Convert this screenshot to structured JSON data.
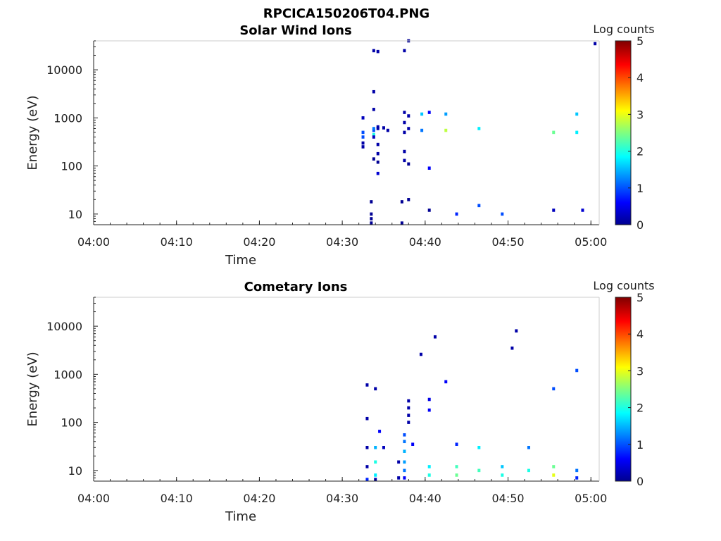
{
  "figure_title": "RPCICA150206T04.PNG",
  "chart_data": [
    {
      "type": "heatmap",
      "title": "Solar Wind Ions",
      "xlabel": "Time",
      "ylabel": "Energy (eV)",
      "x_ticks": [
        "04:00",
        "04:10",
        "04:20",
        "04:30",
        "04:40",
        "04:50",
        "05:00"
      ],
      "x_range_min": [
        0,
        61
      ],
      "y_scale": "log",
      "y_ticks": [
        10,
        100,
        1000,
        10000
      ],
      "y_tick_labels": [
        "10",
        "100",
        "1000",
        "10000"
      ],
      "y_range": [
        6,
        40000
      ],
      "colorbar": {
        "label": "Log counts",
        "ticks": [
          "0",
          "1",
          "2",
          "3",
          "4",
          "5"
        ],
        "range": [
          0,
          5
        ],
        "colormap": "jet"
      },
      "cells": [
        [
          32.5,
          1000,
          0.3
        ],
        [
          32.5,
          500,
          1.0
        ],
        [
          32.5,
          400,
          1.0
        ],
        [
          32.5,
          300,
          0.2
        ],
        [
          32.5,
          250,
          0.2
        ],
        [
          33.5,
          18,
          0.1
        ],
        [
          33.5,
          10,
          0.1
        ],
        [
          33.5,
          8,
          0.1
        ],
        [
          33.5,
          6.5,
          0.1
        ],
        [
          33.8,
          550,
          1.0
        ],
        [
          33.8,
          450,
          2.0
        ],
        [
          33.8,
          600,
          1.2
        ],
        [
          33.8,
          400,
          0.3
        ],
        [
          33.8,
          1500,
          0.2
        ],
        [
          33.8,
          3500,
          0.2
        ],
        [
          33.8,
          25000,
          0.2
        ],
        [
          33.8,
          140,
          0.1
        ],
        [
          34.3,
          650,
          0.2
        ],
        [
          34.3,
          600,
          0.2
        ],
        [
          34.3,
          280,
          0.2
        ],
        [
          34.3,
          180,
          0.2
        ],
        [
          34.3,
          120,
          0.1
        ],
        [
          34.3,
          70,
          0.4
        ],
        [
          34.3,
          24000,
          0.2
        ],
        [
          35.0,
          620,
          0.2
        ],
        [
          35.5,
          550,
          0.2
        ],
        [
          37.2,
          6.5,
          0.1
        ],
        [
          37.2,
          18,
          0.1
        ],
        [
          37.5,
          25000,
          0.2
        ],
        [
          37.5,
          1300,
          0.2
        ],
        [
          37.5,
          800,
          0.2
        ],
        [
          37.5,
          500,
          0.2
        ],
        [
          37.5,
          200,
          0.2
        ],
        [
          37.5,
          130,
          0.2
        ],
        [
          38.0,
          40000,
          0.1
        ],
        [
          38.0,
          1100,
          0.2
        ],
        [
          38.0,
          600,
          0.2
        ],
        [
          38.0,
          110,
          0.1
        ],
        [
          38.0,
          20,
          0.1
        ],
        [
          39.6,
          1200,
          1.6
        ],
        [
          39.6,
          550,
          1.2
        ],
        [
          40.5,
          1300,
          0.6
        ],
        [
          40.5,
          90,
          0.6
        ],
        [
          40.5,
          12,
          0.1
        ],
        [
          42.5,
          1200,
          1.4
        ],
        [
          42.5,
          550,
          2.8
        ],
        [
          43.8,
          10,
          0.8
        ],
        [
          46.5,
          600,
          1.8
        ],
        [
          46.5,
          15,
          1.0
        ],
        [
          49.3,
          10,
          1.0
        ],
        [
          55.5,
          500,
          2.4
        ],
        [
          55.5,
          12,
          0.3
        ],
        [
          58.3,
          1200,
          1.6
        ],
        [
          58.3,
          500,
          1.8
        ],
        [
          59.0,
          12,
          0.4
        ],
        [
          60.5,
          35000,
          0.2
        ]
      ]
    },
    {
      "type": "heatmap",
      "title": "Cometary Ions",
      "xlabel": "Time",
      "ylabel": "Energy (eV)",
      "x_ticks": [
        "04:00",
        "04:10",
        "04:20",
        "04:30",
        "04:40",
        "04:50",
        "05:00"
      ],
      "x_range_min": [
        0,
        61
      ],
      "y_scale": "log",
      "y_ticks": [
        10,
        100,
        1000,
        10000
      ],
      "y_tick_labels": [
        "10",
        "100",
        "1000",
        "10000"
      ],
      "y_range": [
        6,
        40000
      ],
      "colorbar": {
        "label": "Log counts",
        "ticks": [
          "0",
          "1",
          "2",
          "3",
          "4",
          "5"
        ],
        "range": [
          0,
          5
        ],
        "colormap": "jet"
      },
      "cells": [
        [
          33.0,
          600,
          0.2
        ],
        [
          33.0,
          120,
          0.2
        ],
        [
          33.0,
          30,
          0.2
        ],
        [
          33.0,
          12,
          0.2
        ],
        [
          33.0,
          6.5,
          0.8
        ],
        [
          34.0,
          500,
          0.2
        ],
        [
          34.0,
          30,
          1.5
        ],
        [
          34.0,
          15,
          2.0
        ],
        [
          34.0,
          8,
          1.8
        ],
        [
          34.0,
          6.5,
          0.3
        ],
        [
          34.5,
          65,
          0.6
        ],
        [
          35.0,
          30,
          0.3
        ],
        [
          36.8,
          15,
          0.2
        ],
        [
          36.8,
          7,
          0.2
        ],
        [
          37.5,
          55,
          1.0
        ],
        [
          37.5,
          40,
          1.2
        ],
        [
          37.5,
          25,
          1.5
        ],
        [
          37.5,
          15,
          1.4
        ],
        [
          37.5,
          10,
          1.2
        ],
        [
          37.5,
          7,
          0.6
        ],
        [
          38.0,
          280,
          0.2
        ],
        [
          38.0,
          200,
          0.2
        ],
        [
          38.0,
          140,
          0.2
        ],
        [
          38.0,
          100,
          0.2
        ],
        [
          38.5,
          35,
          0.6
        ],
        [
          40.5,
          300,
          0.5
        ],
        [
          40.5,
          180,
          0.6
        ],
        [
          40.5,
          12,
          1.8
        ],
        [
          40.5,
          8,
          2.0
        ],
        [
          42.5,
          700,
          0.6
        ],
        [
          43.8,
          35,
          0.8
        ],
        [
          43.8,
          12,
          2.2
        ],
        [
          43.8,
          8,
          2.4
        ],
        [
          46.5,
          30,
          1.8
        ],
        [
          46.5,
          10,
          2.2
        ],
        [
          49.3,
          12,
          1.6
        ],
        [
          49.3,
          8,
          2.0
        ],
        [
          52.5,
          30,
          1.2
        ],
        [
          52.5,
          10,
          2.0
        ],
        [
          55.5,
          500,
          1.0
        ],
        [
          55.5,
          12,
          2.4
        ],
        [
          55.5,
          8,
          3.0
        ],
        [
          58.3,
          1200,
          1.0
        ],
        [
          58.3,
          10,
          1.2
        ],
        [
          58.3,
          7,
          0.8
        ],
        [
          39.5,
          2600,
          0.2
        ],
        [
          41.2,
          6000,
          0.2
        ],
        [
          50.5,
          3500,
          0.2
        ],
        [
          51.0,
          8000,
          0.2
        ]
      ]
    }
  ]
}
